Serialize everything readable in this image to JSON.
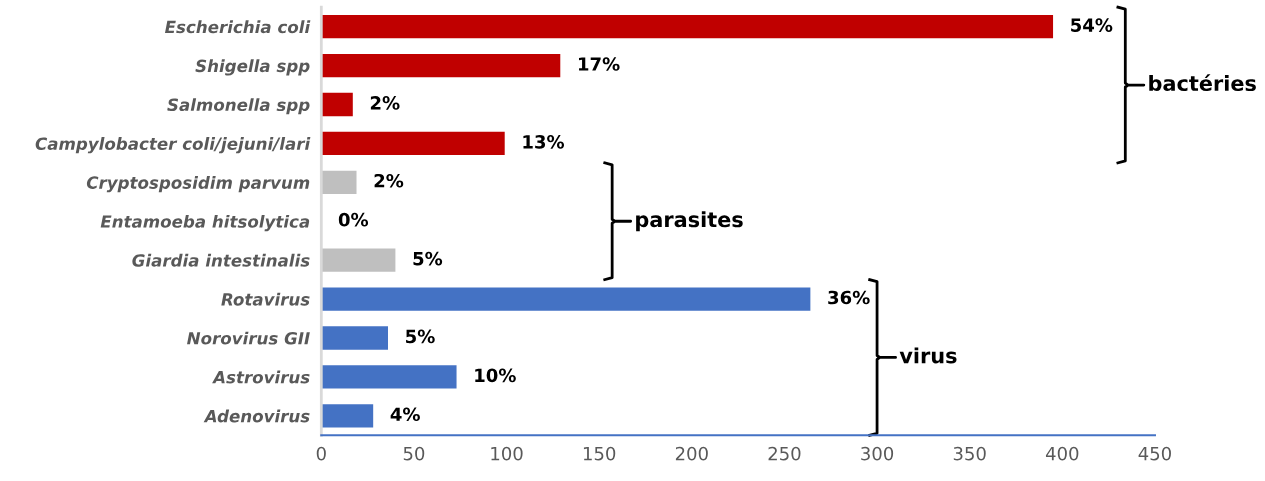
{
  "chart_data": {
    "type": "bar",
    "orientation": "horizontal",
    "categories": [
      "Escherichia coli",
      "Shigella spp",
      "Salmonella spp",
      "Campylobacter coli/jejuni/lari",
      "Cryptosposidim parvum",
      "Entamoeba hitsolytica",
      "Giardia intestinalis",
      "Rotavirus",
      "Norovirus GII",
      "Astrovirus",
      "Adenovirus"
    ],
    "values": [
      395,
      129,
      17,
      99,
      19,
      0,
      40,
      264,
      36,
      73,
      28
    ],
    "colors": [
      "#c00000",
      "#c00000",
      "#c00000",
      "#c00000",
      "#bfbfbf",
      "#bfbfbf",
      "#bfbfbf",
      "#4472c4",
      "#4472c4",
      "#4472c4",
      "#4472c4"
    ],
    "xlim": [
      0,
      450
    ],
    "xticks": [
      0,
      50,
      100,
      150,
      200,
      250,
      300,
      350,
      400,
      450
    ],
    "grid": false,
    "annotations": [
      "bactéries",
      "parasites",
      "virus",
      {
        "text": "54%",
        "x": 395,
        "y": "Escherichia coli"
      },
      {
        "text": "17%",
        "x": 129,
        "y": "Shigella spp"
      },
      {
        "text": "2%",
        "x": 17,
        "y": "Salmonella spp"
      },
      {
        "text": "13%",
        "x": 99,
        "y": "Campylobacter coli/jejuni/lari"
      },
      {
        "text": "2%",
        "x": 19,
        "y": "Cryptosposidim parvum"
      },
      {
        "text": "0%",
        "x": 0,
        "y": "Entamoeba hitsolytica"
      },
      {
        "text": "5%",
        "x": 40,
        "y": "Giardia intestinalis"
      },
      {
        "text": "36%",
        "x": 264,
        "y": "Rotavirus"
      },
      {
        "text": "5%",
        "x": 36,
        "y": "Norovirus GII"
      },
      {
        "text": "10%",
        "x": 73,
        "y": "Astrovirus"
      },
      {
        "text": "4%",
        "x": 28,
        "y": "Adenovirus"
      }
    ]
  }
}
